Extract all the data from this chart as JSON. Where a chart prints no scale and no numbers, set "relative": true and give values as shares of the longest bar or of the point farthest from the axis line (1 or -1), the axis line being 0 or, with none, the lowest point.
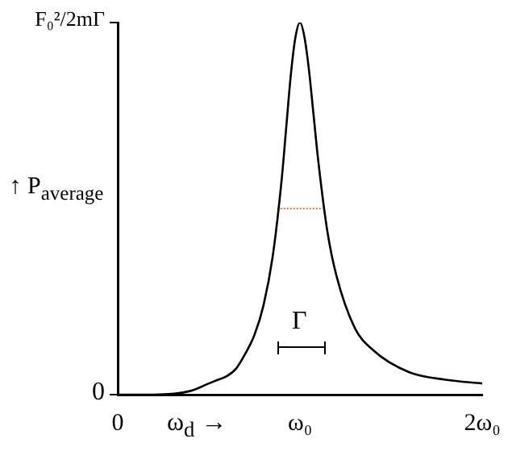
{
  "chart_data": {
    "type": "line",
    "xlabel": "ω$_{d}$ →",
    "ylabel": "↑ P$_{average}$",
    "x": [
      0,
      0.2,
      0.4,
      0.5,
      0.55,
      0.6,
      0.65,
      0.7,
      0.75,
      0.8,
      0.85,
      0.9,
      0.925,
      0.95,
      0.975,
      1,
      1.025,
      1.05,
      1.075,
      1.1,
      1.15,
      1.2,
      1.3,
      1.4,
      1.6,
      1.8,
      2
    ],
    "series": [
      {
        "color": "#000000",
        "values": [
          0,
          0,
          0.01,
          0.03,
          0.04,
          0.05,
          0.07,
          0.11,
          0.16,
          0.24,
          0.37,
          0.58,
          0.72,
          0.86,
          0.96,
          1,
          0.96,
          0.87,
          0.75,
          0.63,
          0.44,
          0.32,
          0.18,
          0.12,
          0.06,
          0.04,
          0.03
        ]
      },
      {
        "color": "#e07b39",
        "line_style": "dotted",
        "x": [
          0.875,
          1.125
        ],
        "values": [
          0.5,
          0.5
        ]
      }
    ],
    "annotations": [
      "F₀²/2mΓ",
      "0",
      "Γ"
    ],
    "relative": true,
    "xlim": [
      0,
      2
    ],
    "xticks": [
      {
        "value": 0,
        "label": "0"
      },
      {
        "value": 1,
        "label": "ω₀"
      },
      {
        "value": 2,
        "label": "2ω₀"
      }
    ],
    "grid": false,
    "legend": false,
    "marker": "none",
    "line_style": "solid"
  }
}
